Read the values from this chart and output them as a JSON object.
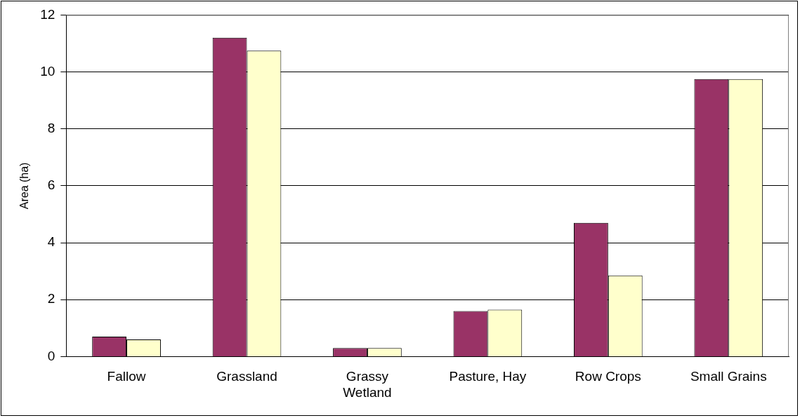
{
  "chart_data": {
    "type": "bar",
    "ylabel": "Area (ha)",
    "categories": [
      "Fallow",
      "Grassland",
      "Grassy Wetland",
      "Pasture, Hay",
      "Row Crops",
      "Small Grains"
    ],
    "series": [
      {
        "color": "#993366",
        "values": [
          0.7,
          11.2,
          0.3,
          1.6,
          4.7,
          9.75
        ]
      },
      {
        "color": "#ffffcc",
        "values": [
          0.6,
          10.75,
          0.3,
          1.65,
          2.85,
          9.75
        ]
      }
    ],
    "ylim": [
      0,
      12
    ],
    "yticks": [
      0,
      2,
      4,
      6,
      8,
      10,
      12
    ],
    "grid": "y",
    "legend": false
  }
}
